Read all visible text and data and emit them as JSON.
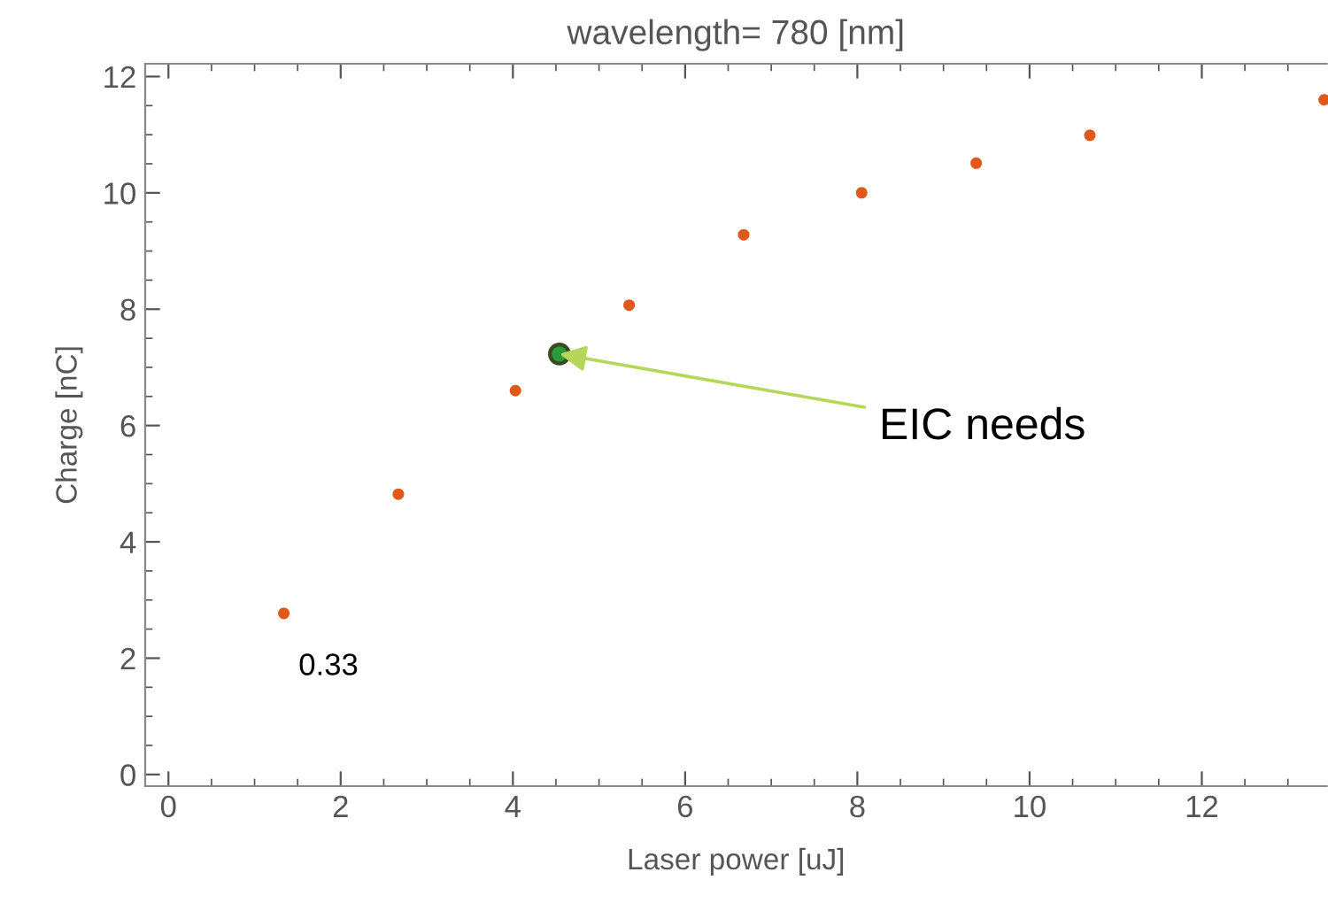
{
  "chart_data": {
    "type": "scatter",
    "title": "wavelength= 780 [nm]",
    "xlabel": "Laser power [uJ]",
    "ylabel": "Charge [nC]",
    "series": [
      {
        "color": "#e0581a",
        "x": [
          1.34,
          2.67,
          4.03,
          5.35,
          6.68,
          8.05,
          9.38,
          10.7,
          13.42
        ],
        "values": [
          2.77,
          4.82,
          6.6,
          8.07,
          9.28,
          10.0,
          10.51,
          10.99,
          11.6
        ]
      },
      {
        "color": "#2a9a3a",
        "x": [
          4.54
        ],
        "values": [
          7.23
        ]
      }
    ],
    "annotations": [
      {
        "text": "0.33",
        "x": 1.34,
        "y": 2.77
      },
      {
        "text": "EIC needs",
        "x": 4.54,
        "y": 7.23
      }
    ],
    "xlim": [
      -0.27,
      13.45
    ],
    "ylim": [
      -0.2,
      12.22
    ],
    "xticks": [
      0,
      2,
      4,
      6,
      8,
      10,
      12
    ],
    "yticks": [
      0,
      2,
      4,
      6,
      8,
      10,
      12
    ],
    "grid": false,
    "legend": false,
    "marker": "circle"
  }
}
